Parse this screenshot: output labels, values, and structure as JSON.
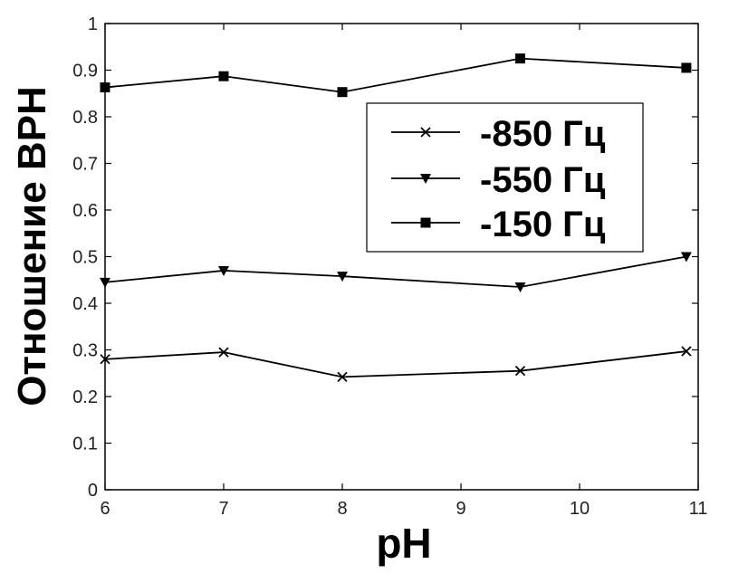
{
  "chart_data": {
    "type": "line",
    "title": "",
    "xlabel": "pH",
    "ylabel": "Отношение BPH",
    "xlim": [
      6,
      11
    ],
    "ylim": [
      0,
      1
    ],
    "x_ticks": [
      "6",
      "7",
      "8",
      "9",
      "10",
      "11"
    ],
    "y_ticks": [
      "0",
      "0.1",
      "0.2",
      "0.3",
      "0.4",
      "0.5",
      "0.6",
      "0.7",
      "0.8",
      "0.9",
      "1"
    ],
    "grid": false,
    "legend_position": "right",
    "series": [
      {
        "name": "-850 Гц",
        "marker": "x",
        "x": [
          6,
          7,
          8,
          9.5,
          10.9
        ],
        "y": [
          0.28,
          0.295,
          0.242,
          0.255,
          0.297
        ]
      },
      {
        "name": "-550 Гц",
        "marker": "triangle-down",
        "x": [
          6,
          7,
          8,
          9.5,
          10.9
        ],
        "y": [
          0.445,
          0.47,
          0.458,
          0.435,
          0.5
        ]
      },
      {
        "name": "-150 Гц",
        "marker": "square",
        "x": [
          6,
          7,
          8,
          9.5,
          10.9
        ],
        "y": [
          0.863,
          0.887,
          0.853,
          0.925,
          0.905
        ]
      }
    ]
  }
}
